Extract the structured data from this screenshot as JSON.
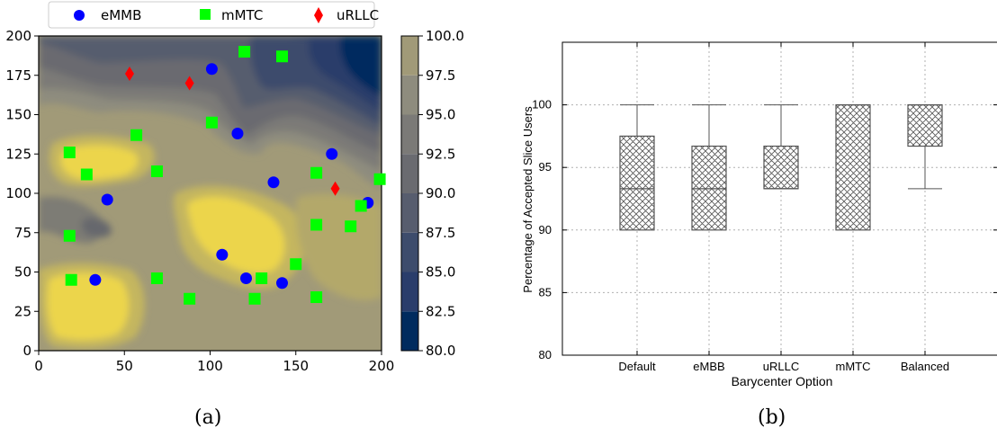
{
  "captions": {
    "a": "(a)",
    "b": "(b)"
  },
  "colors": {
    "emmb": "#0000ff",
    "mmtc": "#00ff00",
    "urllc": "#ff0000",
    "box_edge": "#555555",
    "grid": "#b0b0b0"
  },
  "chart_data": [
    {
      "id": "a",
      "type": "heatmap",
      "title": "",
      "xlabel": "",
      "ylabel": "",
      "xlim": [
        0,
        200
      ],
      "ylim": [
        0,
        200
      ],
      "xticks": [
        "0",
        "50",
        "100",
        "150",
        "200"
      ],
      "yticks": [
        "0",
        "25",
        "50",
        "75",
        "100",
        "125",
        "150",
        "175",
        "200"
      ],
      "legend_position": "top",
      "colorbar": {
        "min": 80.0,
        "max": 100.0,
        "ticks": [
          "80.0",
          "82.5",
          "85.0",
          "87.5",
          "90.0",
          "92.5",
          "95.0",
          "97.5",
          "100.0"
        ],
        "colormap": "cividis"
      },
      "series": [
        {
          "name": "eMMB",
          "marker": "circle",
          "points": [
            [
              33,
              45
            ],
            [
              40,
              96
            ],
            [
              101,
              179
            ],
            [
              107,
              61
            ],
            [
              116,
              138
            ],
            [
              121,
              46
            ],
            [
              137,
              107
            ],
            [
              142,
              43
            ],
            [
              171,
              125
            ],
            [
              192,
              94
            ]
          ]
        },
        {
          "name": "mMTC",
          "marker": "square",
          "points": [
            [
              18,
              126
            ],
            [
              19,
              45
            ],
            [
              18,
              73
            ],
            [
              28,
              112
            ],
            [
              57,
              137
            ],
            [
              69,
              114
            ],
            [
              69,
              46
            ],
            [
              88,
              33
            ],
            [
              101,
              145
            ],
            [
              120,
              190
            ],
            [
              142,
              187
            ],
            [
              126,
              33
            ],
            [
              130,
              46
            ],
            [
              150,
              55
            ],
            [
              162,
              113
            ],
            [
              162,
              80
            ],
            [
              162,
              34
            ],
            [
              182,
              79
            ],
            [
              188,
              92
            ],
            [
              199,
              109
            ]
          ]
        },
        {
          "name": "uRLLC",
          "marker": "diamond",
          "points": [
            [
              53,
              176
            ],
            [
              88,
              170
            ],
            [
              173,
              103
            ]
          ]
        }
      ]
    },
    {
      "id": "b",
      "type": "box",
      "title": "",
      "xlabel": "Barycenter Option",
      "ylabel": "Percentage of Accepted Slice Users",
      "ylim": [
        80,
        105
      ],
      "yticks": [
        "80",
        "85",
        "90",
        "95",
        "100"
      ],
      "grid": true,
      "categories": [
        "Default",
        "eMBB",
        "uRLLC",
        "mMTC",
        "Balanced"
      ],
      "boxes": [
        {
          "whisker_low": 90,
          "q1": 90,
          "median": 93.3,
          "q3": 97.5,
          "whisker_high": 100
        },
        {
          "whisker_low": 90,
          "q1": 90,
          "median": 93.3,
          "q3": 96.7,
          "whisker_high": 100
        },
        {
          "whisker_low": 93.3,
          "q1": 93.3,
          "median": 93.3,
          "q3": 96.7,
          "whisker_high": 100
        },
        {
          "whisker_low": 90,
          "q1": 90,
          "median": 100,
          "q3": 100,
          "whisker_high": 100
        },
        {
          "whisker_low": 93.3,
          "q1": 96.7,
          "median": 100,
          "q3": 100,
          "whisker_high": 100
        }
      ]
    }
  ]
}
